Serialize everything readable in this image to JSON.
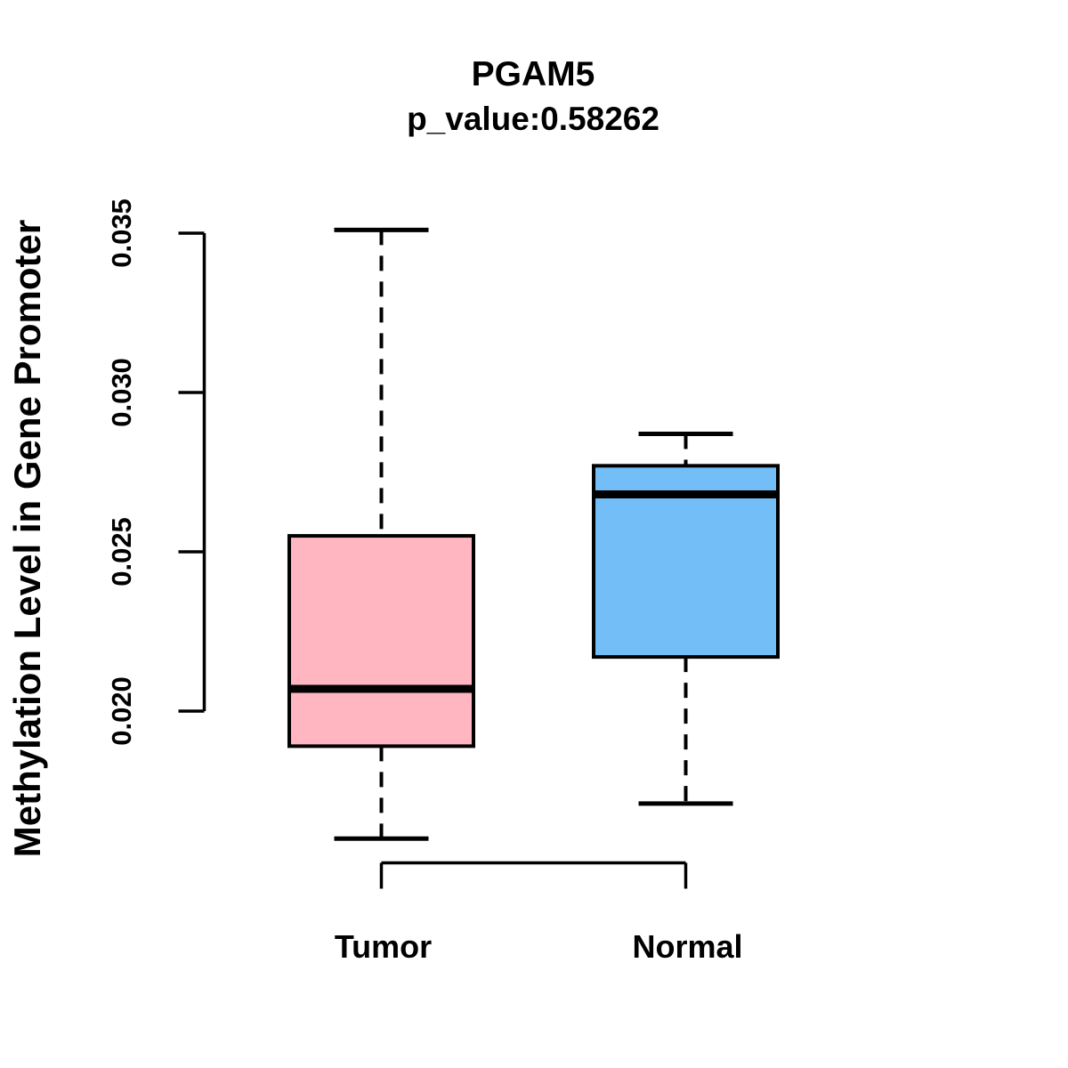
{
  "chart_data": {
    "type": "boxplot",
    "title": "PGAM5",
    "subtitle": "p_value:0.58262",
    "ylabel": "Methylation Level in Gene Promoter",
    "xlabel": "",
    "categories": [
      "Tumor",
      "Normal"
    ],
    "y_tick_labels": [
      "0.020",
      "0.025",
      "0.030",
      "0.035"
    ],
    "y_tick_values": [
      0.02,
      0.025,
      0.03,
      0.035
    ],
    "ylim": [
      0.0155,
      0.0358
    ],
    "grid": false,
    "legend": "none",
    "background_color": "#ffffff",
    "axis_color": "#000000",
    "series": [
      {
        "name": "Tumor",
        "box_color": "#FFB6C1",
        "border_color": "#000000",
        "whisker_low": 0.016,
        "q1": 0.0189,
        "median": 0.0207,
        "q3": 0.0255,
        "whisker_high": 0.0351
      },
      {
        "name": "Normal",
        "box_color": "#74BEF8",
        "border_color": "#000000",
        "whisker_low": 0.0171,
        "q1": 0.0217,
        "median": 0.0268,
        "q3": 0.0277,
        "whisker_high": 0.0287
      }
    ]
  }
}
